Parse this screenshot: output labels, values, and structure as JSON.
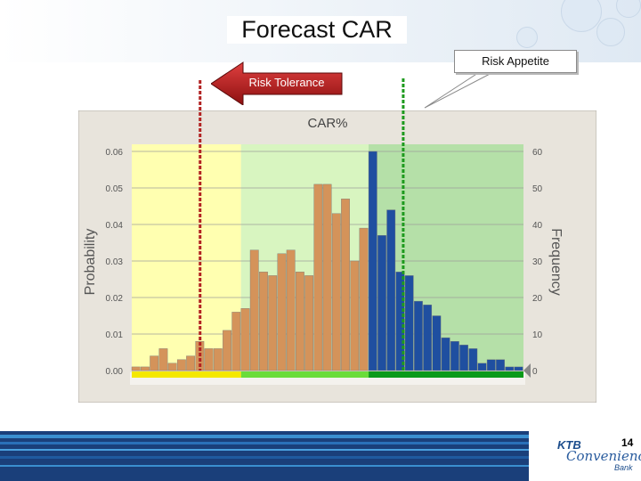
{
  "slide": {
    "title": "Forecast CAR",
    "risk_appetite_label": "Risk Appetite",
    "risk_tolerance_label": "Risk Tolerance",
    "page_number": "14",
    "logo": {
      "line1": "KTB",
      "line2": "Convenience",
      "line3": "Bank"
    }
  },
  "colors": {
    "tolerance_line": "#b22222",
    "appetite_line": "#1e9a1e",
    "bar_orange": "#d4935a",
    "bar_blue": "#1f4fa0",
    "zone_yellow": "#ffffb0",
    "zone_lightgreen": "#d8f5c0",
    "zone_green": "#b5e0a8"
  },
  "chart_data": {
    "type": "bar",
    "title": "CAR%",
    "ylabel_left": "Probability",
    "ylabel_right": "Frequency",
    "left_ticks": [
      "0.06",
      "0.05",
      "0.04",
      "0.03",
      "0.02",
      "0.01",
      "0.00"
    ],
    "right_ticks": [
      "60",
      "50",
      "40",
      "30",
      "20",
      "10",
      "0"
    ],
    "ylim_right": [
      0,
      60
    ],
    "ylim_left": [
      0,
      0.06
    ],
    "frequencies": [
      1,
      1,
      4,
      6,
      2,
      3,
      4,
      8,
      6,
      6,
      11,
      16,
      17,
      33,
      27,
      26,
      32,
      33,
      27,
      26,
      51,
      51,
      43,
      47,
      30,
      39,
      60,
      37,
      44,
      27,
      26,
      19,
      18,
      15,
      9,
      8,
      7,
      6,
      2,
      3,
      3,
      1,
      1
    ],
    "blue_from_index": 26,
    "zones": [
      "yellow",
      "light-green",
      "green"
    ],
    "zone_breaks_bins": [
      12,
      26
    ],
    "tolerance_bin": 7,
    "appetite_bin": 29.8,
    "grid": true,
    "legend": "none"
  }
}
